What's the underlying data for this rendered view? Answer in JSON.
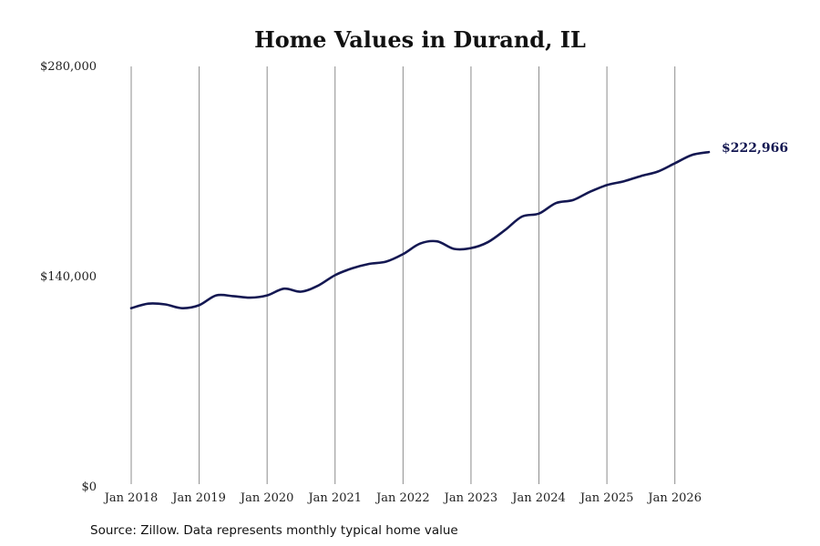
{
  "chart_data": {
    "type": "line",
    "title": "Home Values in Durand, IL",
    "xlabel": "",
    "ylabel": "",
    "ylim": [
      0,
      280000
    ],
    "y_ticks": [
      {
        "value": 0,
        "label": "$0"
      },
      {
        "value": 140000,
        "label": "$140,000"
      },
      {
        "value": 280000,
        "label": "$280,000"
      }
    ],
    "x_range": [
      "2018-01",
      "2026-07"
    ],
    "x_ticks": [
      {
        "date": "2018-01",
        "label": "Jan 2018"
      },
      {
        "date": "2019-01",
        "label": "Jan 2019"
      },
      {
        "date": "2020-01",
        "label": "Jan 2020"
      },
      {
        "date": "2021-01",
        "label": "Jan 2021"
      },
      {
        "date": "2022-01",
        "label": "Jan 2022"
      },
      {
        "date": "2023-01",
        "label": "Jan 2023"
      },
      {
        "date": "2024-01",
        "label": "Jan 2024"
      },
      {
        "date": "2025-01",
        "label": "Jan 2025"
      },
      {
        "date": "2026-01",
        "label": "Jan 2026"
      }
    ],
    "grid": {
      "vertical": true,
      "horizontal": false
    },
    "line_color": "#141852",
    "series": [
      {
        "points": [
          {
            "x": "2018-01",
            "y": 119000
          },
          {
            "x": "2018-04",
            "y": 122000
          },
          {
            "x": "2018-07",
            "y": 121500
          },
          {
            "x": "2018-10",
            "y": 119000
          },
          {
            "x": "2019-01",
            "y": 121000
          },
          {
            "x": "2019-04",
            "y": 127500
          },
          {
            "x": "2019-07",
            "y": 127000
          },
          {
            "x": "2019-10",
            "y": 126000
          },
          {
            "x": "2020-01",
            "y": 127500
          },
          {
            "x": "2020-04",
            "y": 132000
          },
          {
            "x": "2020-07",
            "y": 130000
          },
          {
            "x": "2020-10",
            "y": 134000
          },
          {
            "x": "2021-01",
            "y": 141000
          },
          {
            "x": "2021-04",
            "y": 145500
          },
          {
            "x": "2021-07",
            "y": 148500
          },
          {
            "x": "2021-10",
            "y": 150000
          },
          {
            "x": "2022-01",
            "y": 155000
          },
          {
            "x": "2022-04",
            "y": 162000
          },
          {
            "x": "2022-07",
            "y": 163500
          },
          {
            "x": "2022-10",
            "y": 158500
          },
          {
            "x": "2023-01",
            "y": 159000
          },
          {
            "x": "2023-04",
            "y": 163000
          },
          {
            "x": "2023-07",
            "y": 171000
          },
          {
            "x": "2023-10",
            "y": 180000
          },
          {
            "x": "2024-01",
            "y": 182000
          },
          {
            "x": "2024-04",
            "y": 189000
          },
          {
            "x": "2024-07",
            "y": 191000
          },
          {
            "x": "2024-10",
            "y": 196500
          },
          {
            "x": "2025-01",
            "y": 201000
          },
          {
            "x": "2025-04",
            "y": 203500
          },
          {
            "x": "2025-07",
            "y": 207000
          },
          {
            "x": "2025-10",
            "y": 210000
          },
          {
            "x": "2026-01",
            "y": 215500
          },
          {
            "x": "2026-04",
            "y": 221000
          },
          {
            "x": "2026-07",
            "y": 222966
          }
        ]
      }
    ],
    "end_label": "$222,966",
    "end_label_color": "#141852"
  },
  "footer": {
    "source": "Source: Zillow. Data represents monthly typical home value"
  }
}
